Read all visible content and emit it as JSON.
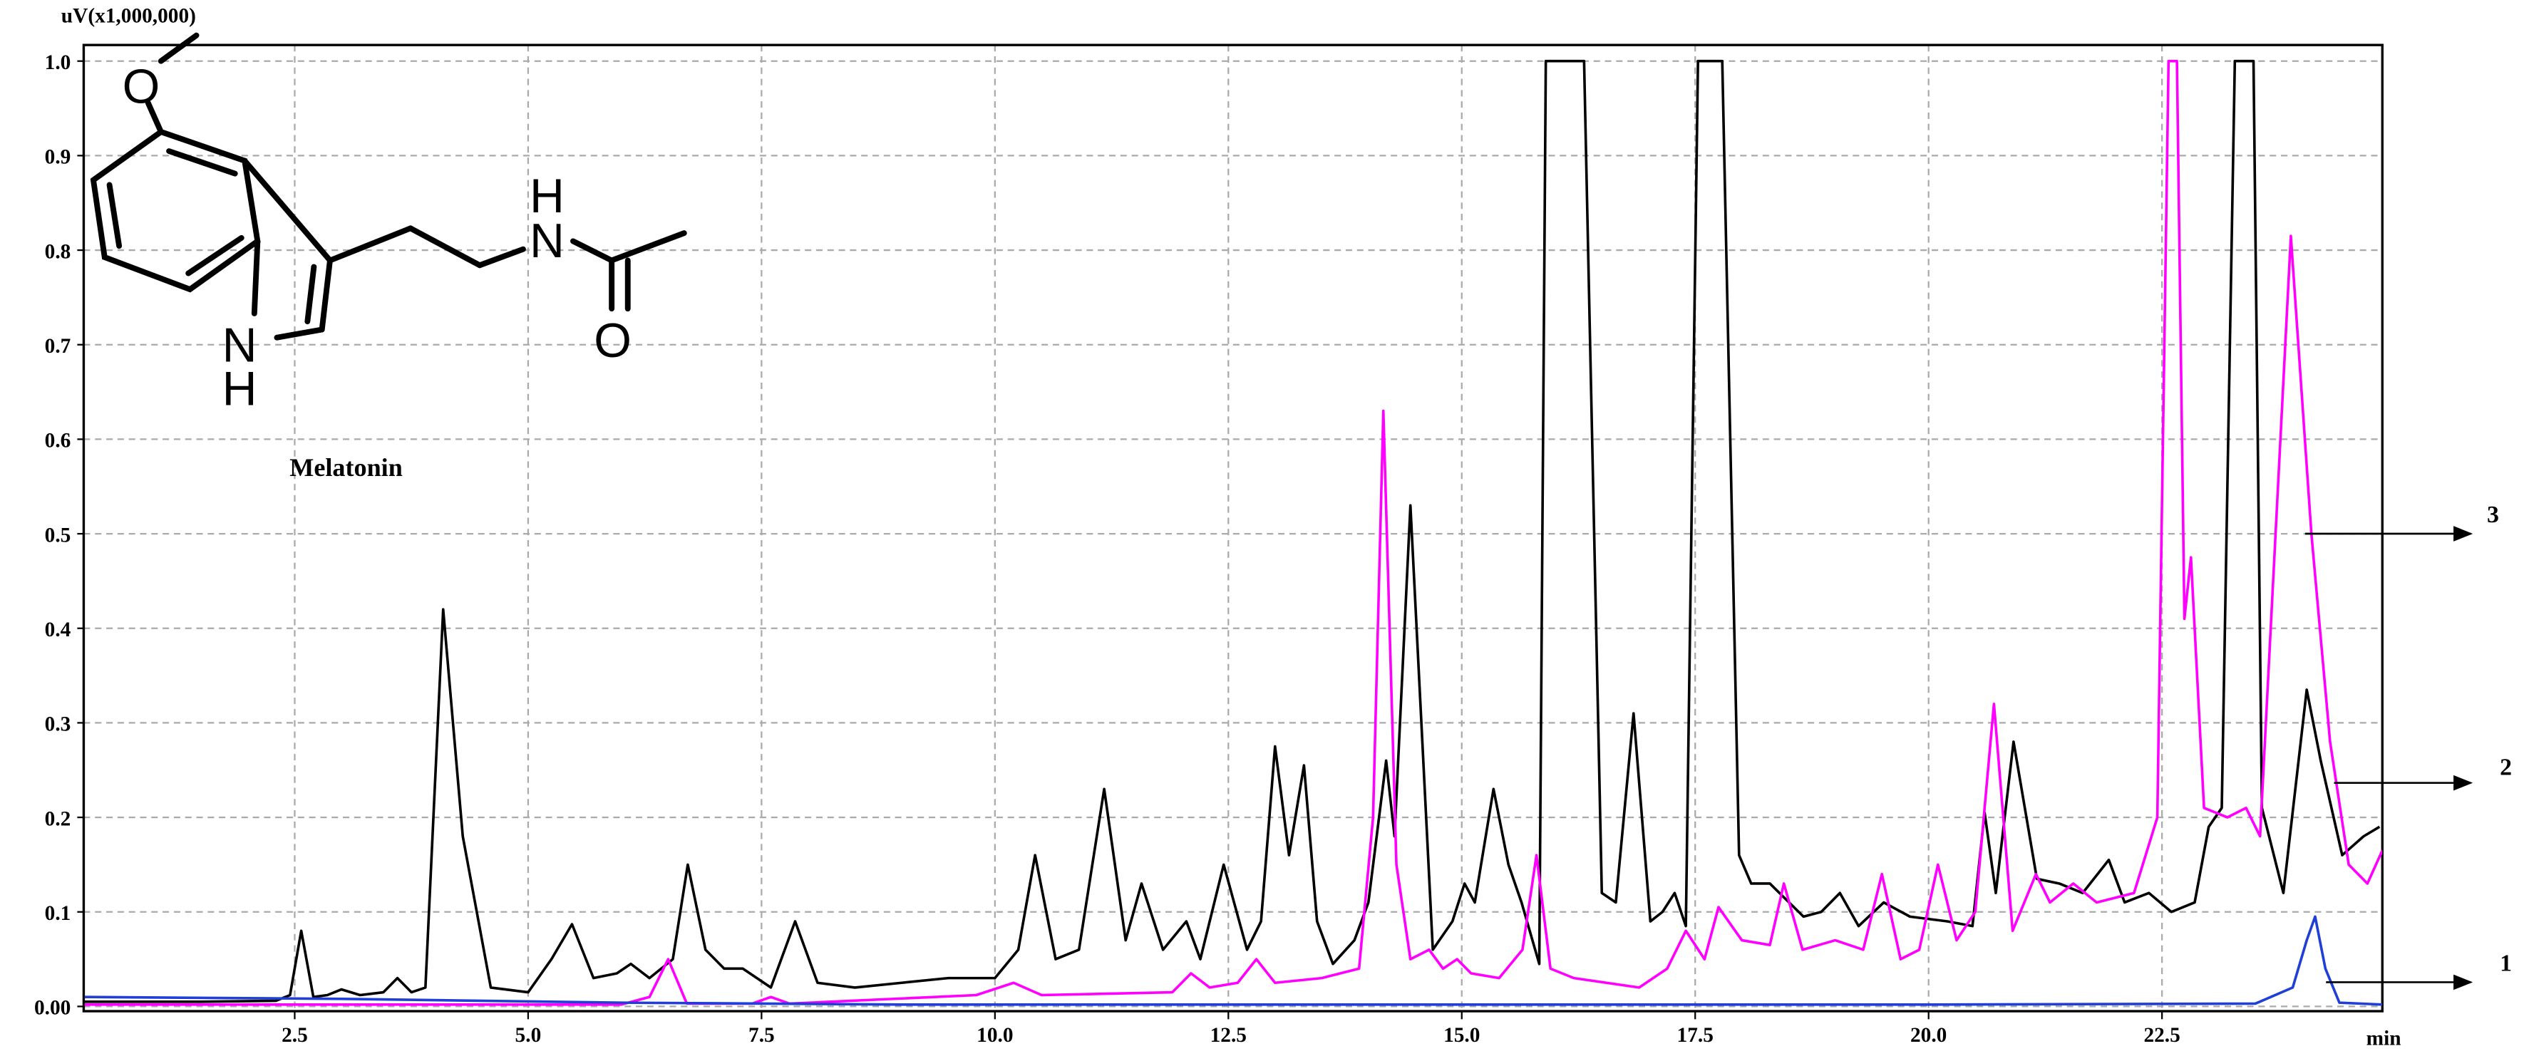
{
  "chart_data": {
    "type": "line",
    "y_label": "uV(x1,000,000)",
    "x_label": "min",
    "xlim": [
      0.24,
      24.86
    ],
    "ylim": [
      -0.005,
      1.017
    ],
    "xticks": [
      2.5,
      {
        "value": 5,
        "label": "5.0"
      },
      7.5,
      {
        "value": 10,
        "label": "10.0"
      },
      12.5,
      {
        "value": 15,
        "label": "15.0"
      },
      17.5,
      {
        "value": 20,
        "label": "20.0"
      },
      22.5
    ],
    "yticks": [
      {
        "value": 0,
        "label": "0.00"
      },
      0.1,
      0.2,
      0.3,
      0.4,
      0.5,
      0.6,
      0.7,
      0.8,
      0.9,
      {
        "value": 1,
        "label": "1.0"
      }
    ],
    "grid": true,
    "annotations": [
      "1",
      "2",
      "3"
    ],
    "inset": {
      "label": "Melatonin",
      "atoms": [
        "O",
        "H",
        "N",
        "N",
        "H",
        "O"
      ]
    },
    "series": [
      {
        "color": "#1f3fd6",
        "x": [
          0.25,
          3,
          6,
          9,
          12,
          16,
          20,
          23.5,
          23.9,
          24.05,
          24.14,
          24.25,
          24.4,
          24.86
        ],
        "values": [
          0.01,
          0.008,
          0.004,
          0.002,
          0.002,
          0.002,
          0.002,
          0.003,
          0.02,
          0.07,
          0.095,
          0.04,
          0.004,
          0.002
        ]
      },
      {
        "color": "#ff00ff",
        "x": [
          0.25,
          6.0,
          6.3,
          6.5,
          6.7,
          7.4,
          7.6,
          7.8,
          9.8,
          10.2,
          10.5,
          11.9,
          12.1,
          12.3,
          12.6,
          12.8,
          13.0,
          13.5,
          13.9,
          14.05,
          14.16,
          14.3,
          14.45,
          14.65,
          14.8,
          14.95,
          15.1,
          15.4,
          15.65,
          15.8,
          15.95,
          16.2,
          16.9,
          17.2,
          17.4,
          17.6,
          17.75,
          18.0,
          18.3,
          18.45,
          18.65,
          19.0,
          19.3,
          19.5,
          19.7,
          19.9,
          20.1,
          20.3,
          20.5,
          20.7,
          20.9,
          21.15,
          21.3,
          21.55,
          21.8,
          22.2,
          22.45,
          22.57,
          22.66,
          22.74,
          22.81,
          22.95,
          23.2,
          23.4,
          23.55,
          23.88,
          24.1,
          24.3,
          24.5,
          24.7,
          24.86
        ],
        "values": [
          0.002,
          0.002,
          0.01,
          0.05,
          0.003,
          0.003,
          0.01,
          0.003,
          0.012,
          0.025,
          0.012,
          0.015,
          0.035,
          0.02,
          0.025,
          0.05,
          0.025,
          0.03,
          0.04,
          0.2,
          0.63,
          0.15,
          0.05,
          0.06,
          0.04,
          0.05,
          0.035,
          0.03,
          0.06,
          0.16,
          0.04,
          0.03,
          0.02,
          0.04,
          0.08,
          0.05,
          0.105,
          0.07,
          0.065,
          0.13,
          0.06,
          0.07,
          0.06,
          0.14,
          0.05,
          0.06,
          0.15,
          0.07,
          0.1,
          0.32,
          0.08,
          0.14,
          0.11,
          0.13,
          0.11,
          0.12,
          0.2,
          1,
          1,
          0.41,
          0.475,
          0.21,
          0.2,
          0.21,
          0.18,
          0.815,
          0.5,
          0.28,
          0.15,
          0.13,
          0.165
        ]
      },
      {
        "color": "#000000",
        "x": [
          0.25,
          1.5,
          2.3,
          2.45,
          2.57,
          2.7,
          2.85,
          3.0,
          3.2,
          3.45,
          3.6,
          3.75,
          3.9,
          4.09,
          4.3,
          4.6,
          5.0,
          5.25,
          5.47,
          5.7,
          5.95,
          6.1,
          6.3,
          6.55,
          6.71,
          6.9,
          7.1,
          7.3,
          7.6,
          7.86,
          8.1,
          8.5,
          9.0,
          9.5,
          10.0,
          10.25,
          10.43,
          10.65,
          10.9,
          11.17,
          11.4,
          11.57,
          11.8,
          12.05,
          12.2,
          12.45,
          12.7,
          12.85,
          13.0,
          13.15,
          13.31,
          13.45,
          13.62,
          13.85,
          14.0,
          14.19,
          14.28,
          14.45,
          14.69,
          14.9,
          15.03,
          15.14,
          15.34,
          15.5,
          15.64,
          15.83,
          15.9,
          16.31,
          16.5,
          16.65,
          16.84,
          17.02,
          17.15,
          17.28,
          17.4,
          17.53,
          17.79,
          17.97,
          18.1,
          18.3,
          18.66,
          18.85,
          19.05,
          19.25,
          19.52,
          19.8,
          20.2,
          20.47,
          20.6,
          20.72,
          20.91,
          21.16,
          21.4,
          21.65,
          21.93,
          22.1,
          22.36,
          22.6,
          22.85,
          23.0,
          23.14,
          23.28,
          23.48,
          23.57,
          23.8,
          24.05,
          24.2,
          24.43,
          24.66,
          24.83
        ],
        "values": [
          0.005,
          0.005,
          0.006,
          0.012,
          0.08,
          0.01,
          0.012,
          0.018,
          0.012,
          0.015,
          0.03,
          0.015,
          0.02,
          0.42,
          0.18,
          0.02,
          0.015,
          0.05,
          0.087,
          0.03,
          0.035,
          0.045,
          0.03,
          0.05,
          0.15,
          0.06,
          0.04,
          0.04,
          0.02,
          0.09,
          0.025,
          0.02,
          0.025,
          0.03,
          0.03,
          0.06,
          0.16,
          0.05,
          0.06,
          0.23,
          0.07,
          0.13,
          0.06,
          0.09,
          0.05,
          0.15,
          0.06,
          0.09,
          0.275,
          0.16,
          0.255,
          0.09,
          0.045,
          0.07,
          0.11,
          0.26,
          0.18,
          0.53,
          0.06,
          0.09,
          0.13,
          0.11,
          0.23,
          0.15,
          0.11,
          0.045,
          1,
          1,
          0.12,
          0.11,
          0.31,
          0.09,
          0.1,
          0.12,
          0.085,
          1,
          1,
          0.16,
          0.13,
          0.13,
          0.095,
          0.1,
          0.12,
          0.085,
          0.11,
          0.095,
          0.09,
          0.085,
          0.205,
          0.12,
          0.28,
          0.135,
          0.13,
          0.12,
          0.155,
          0.11,
          0.12,
          0.1,
          0.11,
          0.19,
          0.21,
          1,
          1,
          0.21,
          0.12,
          0.335,
          0.26,
          0.16,
          0.18,
          0.19
        ]
      }
    ]
  }
}
